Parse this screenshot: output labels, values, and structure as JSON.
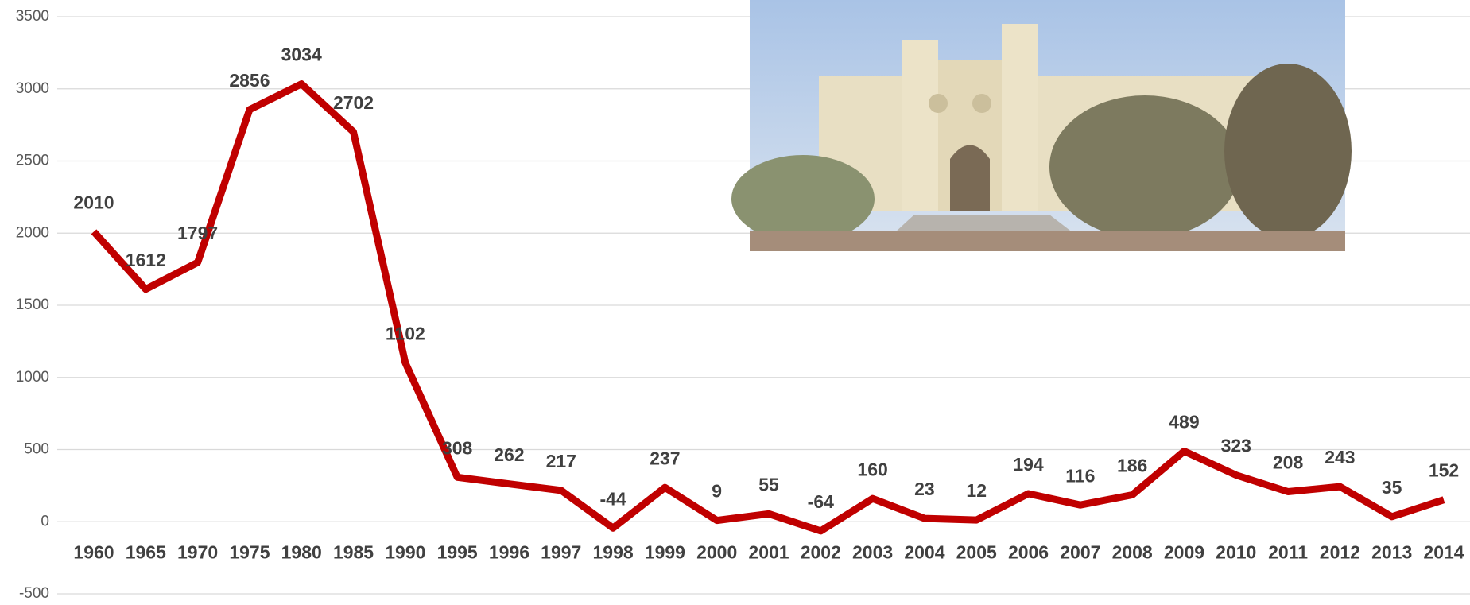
{
  "chart_data": {
    "type": "line",
    "categories": [
      "1960",
      "1965",
      "1970",
      "1975",
      "1980",
      "1985",
      "1990",
      "1995",
      "1996",
      "1997",
      "1998",
      "1999",
      "2000",
      "2001",
      "2002",
      "2003",
      "2004",
      "2005",
      "2006",
      "2007",
      "2008",
      "2009",
      "2010",
      "2011",
      "2012",
      "2013",
      "2014"
    ],
    "values": [
      2010,
      1612,
      1797,
      2856,
      3034,
      2702,
      1102,
      308,
      262,
      217,
      -44,
      237,
      9,
      55,
      -64,
      160,
      23,
      12,
      194,
      116,
      186,
      489,
      323,
      208,
      243,
      35,
      152
    ],
    "color": "#c00000",
    "ylim": [
      -500,
      3500
    ],
    "yticks": [
      -500,
      0,
      500,
      1000,
      1500,
      2000,
      2500,
      3000,
      3500
    ],
    "grid": true
  }
}
